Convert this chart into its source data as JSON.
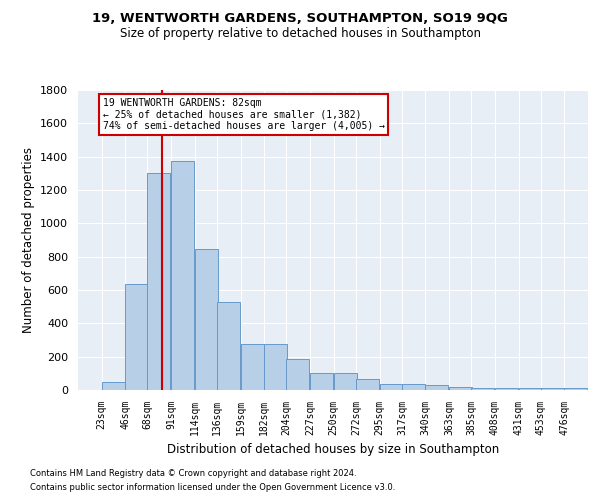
{
  "title1": "19, WENTWORTH GARDENS, SOUTHAMPTON, SO19 9QG",
  "title2": "Size of property relative to detached houses in Southampton",
  "xlabel": "Distribution of detached houses by size in Southampton",
  "ylabel": "Number of detached properties",
  "footnote1": "Contains HM Land Registry data © Crown copyright and database right 2024.",
  "footnote2": "Contains public sector information licensed under the Open Government Licence v3.0.",
  "bar_color": "#b8cfe8",
  "bar_edge_color": "#6699cc",
  "background_color": "#e8eef5",
  "grid_color": "#ffffff",
  "bins": [
    23,
    46,
    68,
    91,
    114,
    136,
    159,
    182,
    204,
    227,
    250,
    272,
    295,
    317,
    340,
    363,
    385,
    408,
    431,
    453,
    476
  ],
  "counts": [
    50,
    635,
    1305,
    1375,
    845,
    530,
    275,
    275,
    185,
    105,
    105,
    65,
    35,
    35,
    30,
    20,
    15,
    10,
    10,
    10,
    10
  ],
  "property_size": 82,
  "annotation_text": "19 WENTWORTH GARDENS: 82sqm\n← 25% of detached houses are smaller (1,382)\n74% of semi-detached houses are larger (4,005) →",
  "annotation_box_color": "#cc0000",
  "ylim": [
    0,
    1800
  ],
  "yticks": [
    0,
    200,
    400,
    600,
    800,
    1000,
    1200,
    1400,
    1600,
    1800
  ],
  "bin_width": 23,
  "xlim_left": 0,
  "xlim_right": 499
}
